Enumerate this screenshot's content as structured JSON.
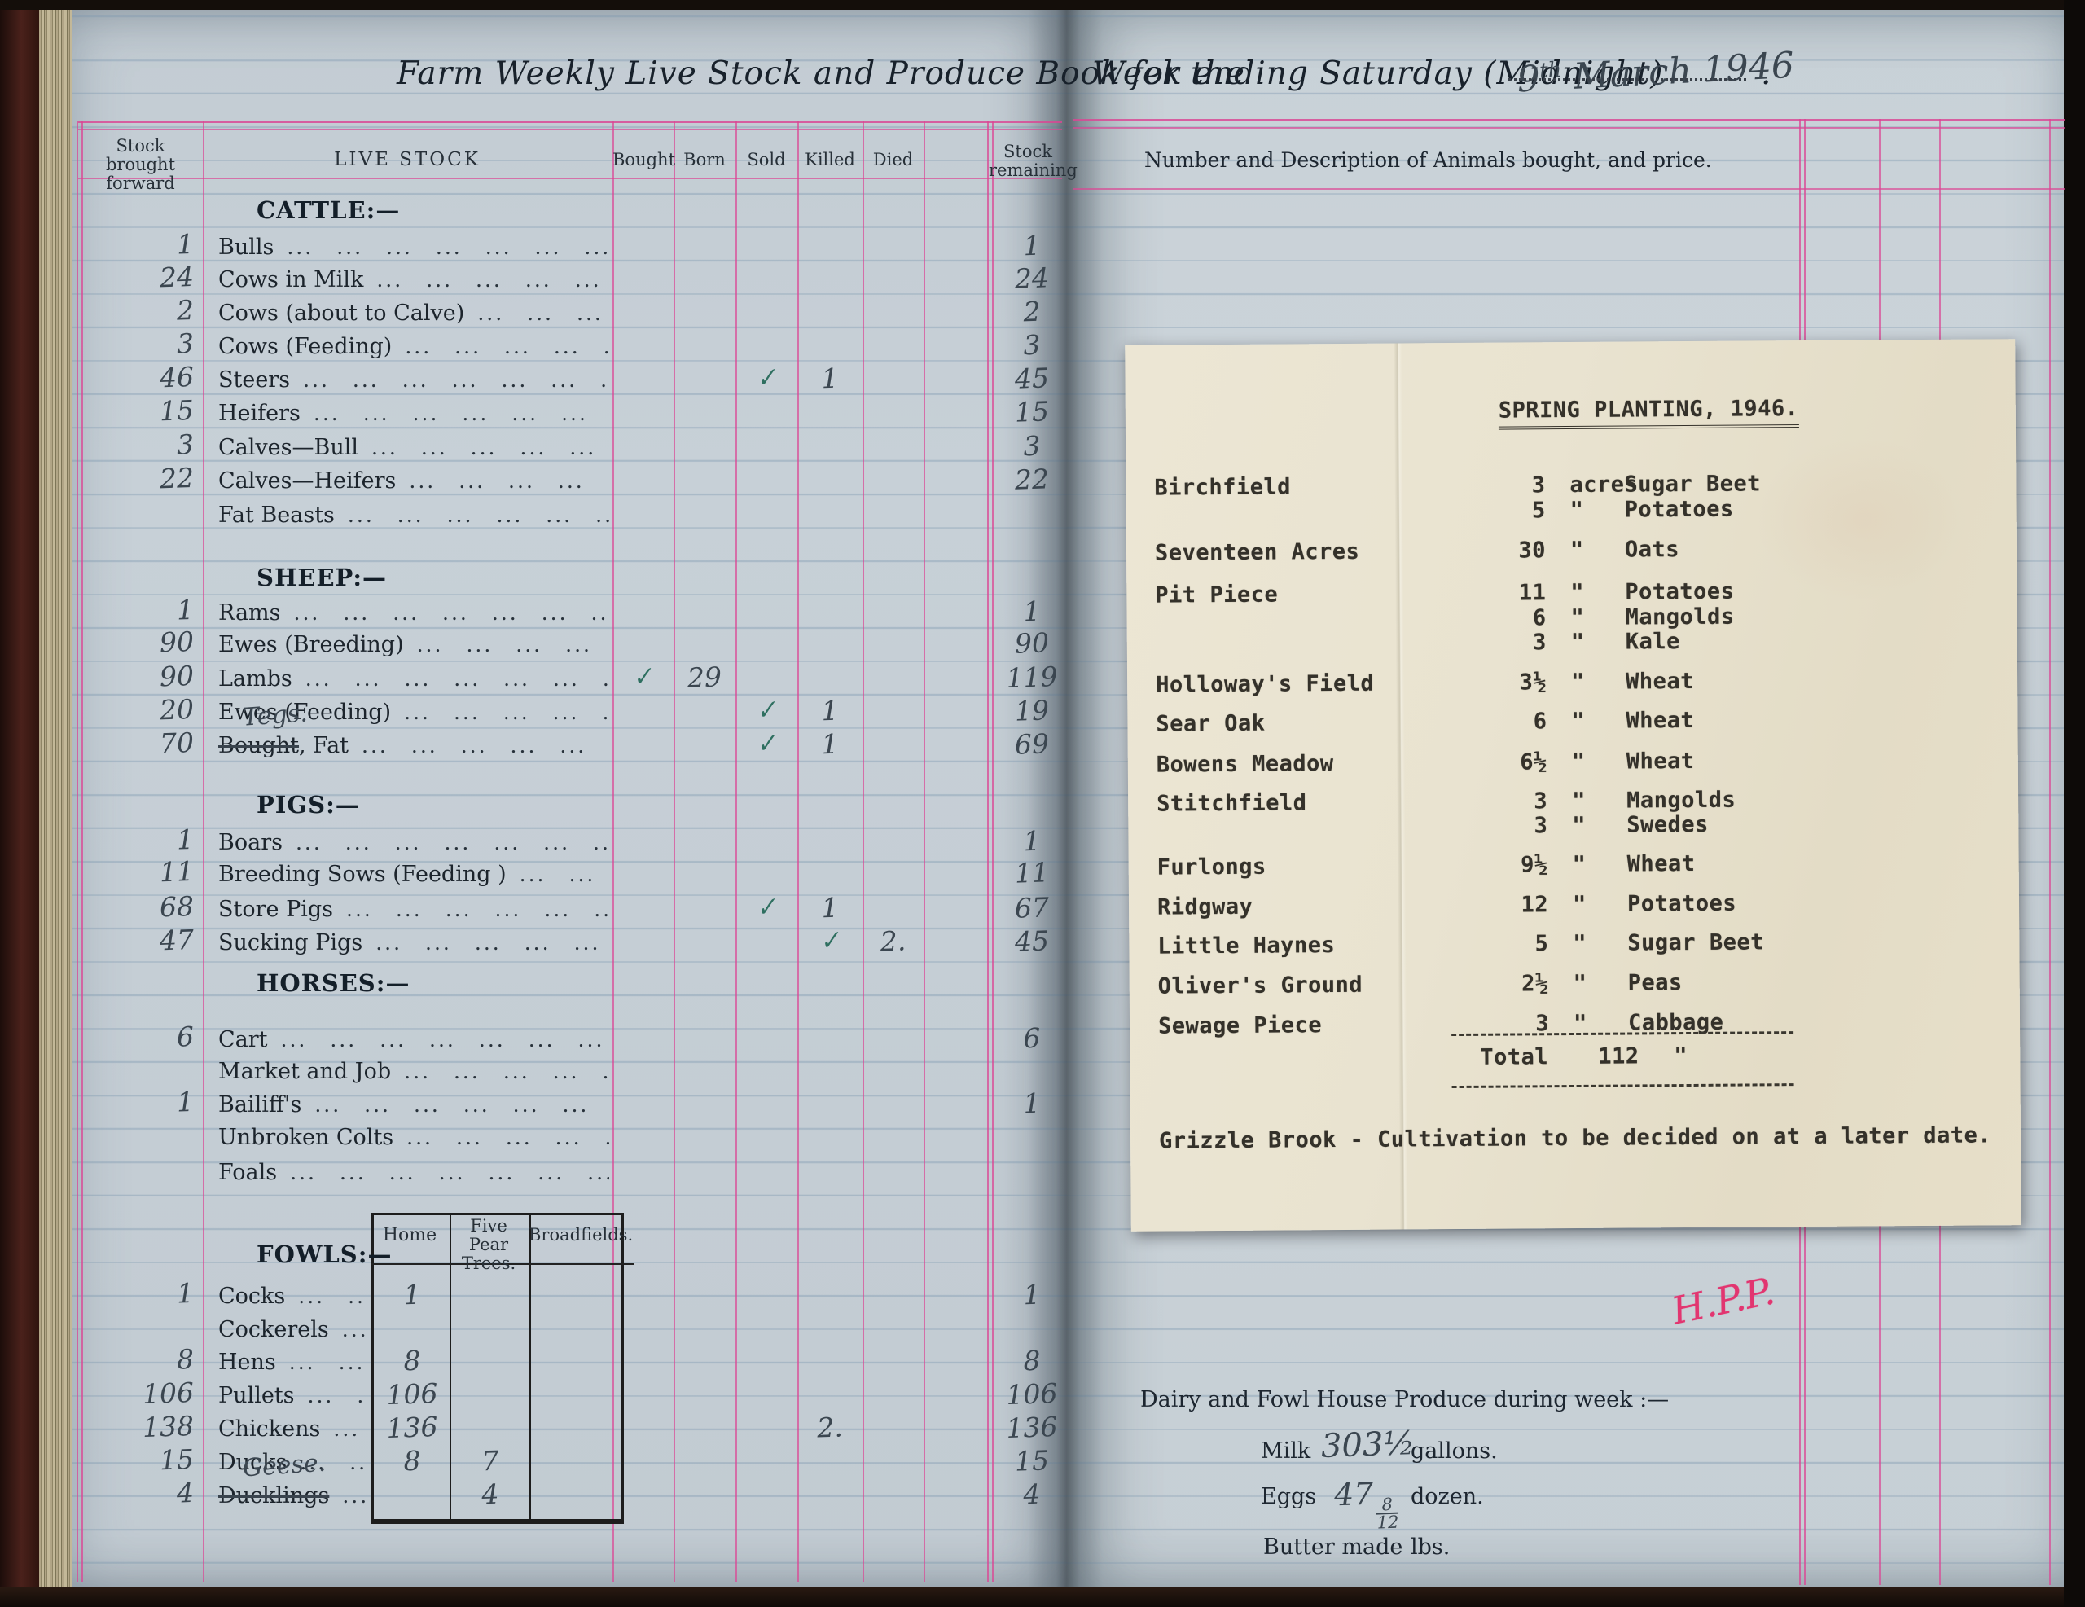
{
  "book_title": {
    "part1": "Farm Weekly Live Stock and Produce Book for the",
    "part2": "Week ending Saturday (Midnight)",
    "date_day": "9",
    "date_ordinal": "th",
    "date_rest": " March 1946",
    "period": "."
  },
  "ledger": {
    "column_headers": {
      "bf": "Stock\nbrought\nforward",
      "livestock": "LIVE  STOCK",
      "bought": "Bought",
      "born": "Born",
      "sold": "Sold",
      "killed": "Killed",
      "died": "Died",
      "remaining": "Stock\nremaining"
    },
    "sections": [
      {
        "heading": "CATTLE:—",
        "rows": [
          {
            "label": "Bulls",
            "bf": "1",
            "remaining": "1"
          },
          {
            "label": "Cows in Milk",
            "bf": "24",
            "remaining": "24"
          },
          {
            "label": "Cows (about to Calve)",
            "bf": "2",
            "remaining": "2"
          },
          {
            "label": "Cows (Feeding)",
            "bf": "3",
            "remaining": "3"
          },
          {
            "label": "Steers",
            "bf": "46",
            "sold": "✓",
            "killed": "1",
            "remaining": "45"
          },
          {
            "label": "Heifers",
            "bf": "15",
            "remaining": "15"
          },
          {
            "label": "Calves—Bull",
            "bf": "3",
            "remaining": "3"
          },
          {
            "label": "Calves—Heifers",
            "bf": "22",
            "remaining": "22"
          },
          {
            "label": "Fat Beasts"
          }
        ]
      },
      {
        "heading": "SHEEP:—",
        "rows": [
          {
            "label": "Rams",
            "bf": "1",
            "remaining": "1"
          },
          {
            "label": "Ewes (Breeding)",
            "bf": "90",
            "remaining": "90"
          },
          {
            "label": "Lambs",
            "bf": "90",
            "bought": "✓",
            "born": "29",
            "remaining": "119"
          },
          {
            "label": "Ewes (Feeding)",
            "bf": "20",
            "sold": "✓",
            "killed": "1",
            "remaining": "19"
          },
          {
            "label_struck": "Bought",
            "label_rest": ", Fat",
            "hand_label": "Tegs.",
            "bf": "70",
            "sold": "✓",
            "killed": "1",
            "remaining": "69"
          }
        ]
      },
      {
        "heading": "PIGS:—",
        "rows": [
          {
            "label": "Boars",
            "bf": "1",
            "remaining": "1"
          },
          {
            "label": "Breeding Sows (Feeding      )",
            "bf": "11",
            "remaining": "11"
          },
          {
            "label": "Store Pigs",
            "bf": "68",
            "sold": "✓",
            "killed": "1",
            "remaining": "67"
          },
          {
            "label": "Sucking Pigs",
            "bf": "47",
            "killed": "✓",
            "died": "2.",
            "remaining": "45"
          }
        ]
      },
      {
        "heading": "HORSES:—",
        "rows": [
          {
            "label": "Cart",
            "bf": "6",
            "remaining": "6"
          },
          {
            "label": "Market and Job"
          },
          {
            "label": "Bailiff's",
            "bf": "1",
            "remaining": "1"
          },
          {
            "label": "Unbroken Colts"
          },
          {
            "label": "Foals"
          }
        ]
      },
      {
        "heading": "FOWLS:—",
        "rows": [
          {
            "label": "Cocks",
            "bf": "1",
            "home": "1",
            "remaining": "1"
          },
          {
            "label": "Cockerels"
          },
          {
            "label": "Hens",
            "bf": "8",
            "home": "8",
            "remaining": "8"
          },
          {
            "label": "Pullets",
            "bf": "106",
            "home": "106",
            "remaining": "106"
          },
          {
            "label": "Chickens",
            "bf": "138",
            "home": "136",
            "killed": "2.",
            "remaining": "136"
          },
          {
            "label": "Ducks",
            "bf": "15",
            "home": "8",
            "fpt": "7",
            "remaining": "15"
          },
          {
            "label_struck": "Ducklings",
            "hand_label": "Geese.",
            "bf": "4",
            "fpt": "4",
            "remaining": "4"
          }
        ]
      }
    ],
    "fowl_table": {
      "h_home": "Home",
      "h_fpt": "Five Pear\nTrees.",
      "h_bft": "Broadfields."
    }
  },
  "right_page": {
    "header": "Number and Description of Animals bought, and price.",
    "note": {
      "title": "SPRING PLANTING, 1946.",
      "lines": [
        {
          "field": "Birchfield",
          "acres": "3",
          "unit": "acres",
          "crop": "Sugar Beet"
        },
        {
          "field": "",
          "acres": "5",
          "unit": "\"",
          "crop": "Potatoes"
        },
        {
          "field": "Seventeen Acres",
          "acres": "30",
          "unit": "\"",
          "crop": "Oats"
        },
        {
          "field": "Pit Piece",
          "acres": "11",
          "unit": "\"",
          "crop": "Potatoes"
        },
        {
          "field": "",
          "acres": "6",
          "unit": "\"",
          "crop": "Mangolds"
        },
        {
          "field": "",
          "acres": "3",
          "unit": "\"",
          "crop": "Kale"
        },
        {
          "field": "Holloway's Field",
          "acres": "3½",
          "unit": "\"",
          "crop": "Wheat"
        },
        {
          "field": "Sear Oak",
          "acres": "6",
          "unit": "\"",
          "crop": "Wheat"
        },
        {
          "field": "Bowens Meadow",
          "acres": "6½",
          "unit": "\"",
          "crop": "Wheat"
        },
        {
          "field": "Stitchfield",
          "acres": "3",
          "unit": "\"",
          "crop": "Mangolds"
        },
        {
          "field": "",
          "acres": "3",
          "unit": "\"",
          "crop": "Swedes"
        },
        {
          "field": "Furlongs",
          "acres": "9½",
          "unit": "\"",
          "crop": "Wheat"
        },
        {
          "field": "Ridgway",
          "acres": "12",
          "unit": "\"",
          "crop": "Potatoes"
        },
        {
          "field": "Little Haynes",
          "acres": "5",
          "unit": "\"",
          "crop": "Sugar Beet"
        },
        {
          "field": "Oliver's Ground",
          "acres": "2½",
          "unit": "\"",
          "crop": "Peas"
        },
        {
          "field": "Sewage Piece",
          "acres": "3",
          "unit": "\"",
          "crop": "Cabbage"
        }
      ],
      "total_label": "Total",
      "total_value": "112",
      "total_unit": "\"",
      "footnote": "Grizzle Brook  -  Cultivation to be decided on at a later date."
    },
    "initials": "H.P.P.",
    "produce": {
      "heading": "Dairy and Fowl House Produce during week :—",
      "milk_label": "Milk",
      "milk_value": "303½",
      "milk_unit": "gallons.",
      "eggs_label": "Eggs",
      "eggs_value": "47",
      "eggs_num": "8",
      "eggs_den": "12",
      "eggs_unit": "dozen.",
      "butter_label": "Butter made",
      "butter_unit": "lbs."
    }
  }
}
